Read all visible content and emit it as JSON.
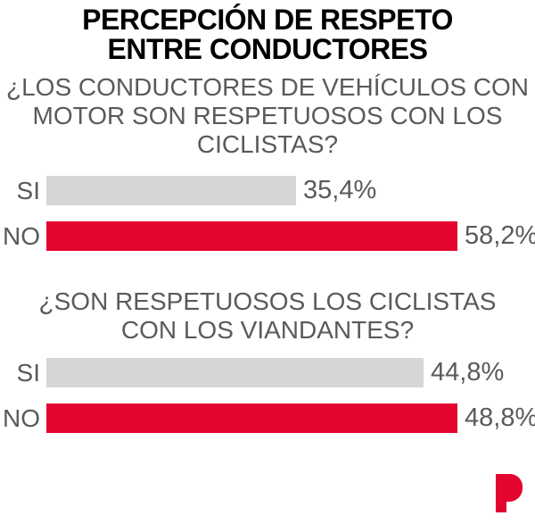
{
  "title": {
    "lines": [
      "PERCEPCIÓN DE RESPETO",
      "ENTRE CONDUCTORES"
    ]
  },
  "colors": {
    "accent_red": "#e3042f",
    "bar_gray": "#d6d6d6",
    "text_gray": "#595a5c",
    "title_black": "#000000",
    "background": "#ffffff"
  },
  "logo": {
    "glyph": "P",
    "color": "#e3042f"
  },
  "chart_data": [
    {
      "type": "bar",
      "orientation": "horizontal",
      "title": "¿LOS CONDUCTORES DE VEHÍCULOS CON MOTOR SON RESPETUOSOS CON LOS CICLISTAS?",
      "title_lines": [
        "¿LOS CONDUCTORES DE VEHÍCULOS CON",
        "MOTOR SON RESPETUOSOS CON LOS",
        "CICLISTAS?"
      ],
      "categories": [
        "SI",
        "NO"
      ],
      "values": [
        35.4,
        58.2
      ],
      "value_labels": [
        "35,4%",
        "58,2%"
      ],
      "bar_colors": [
        "#d6d6d6",
        "#e3042f"
      ],
      "xlim": [
        0,
        58.2
      ],
      "legend": false,
      "grid": false
    },
    {
      "type": "bar",
      "orientation": "horizontal",
      "title": "¿SON RESPETUOSOS LOS CICLISTAS CON LOS VIANDANTES?",
      "title_lines": [
        "¿SON RESPETUOSOS LOS CICLISTAS",
        "CON LOS VIANDANTES?"
      ],
      "categories": [
        "SI",
        "NO"
      ],
      "values": [
        44.8,
        48.8
      ],
      "value_labels": [
        "44,8%",
        "48,8%"
      ],
      "bar_colors": [
        "#d6d6d6",
        "#e3042f"
      ],
      "xlim": [
        0,
        48.8
      ],
      "legend": false,
      "grid": false
    }
  ]
}
